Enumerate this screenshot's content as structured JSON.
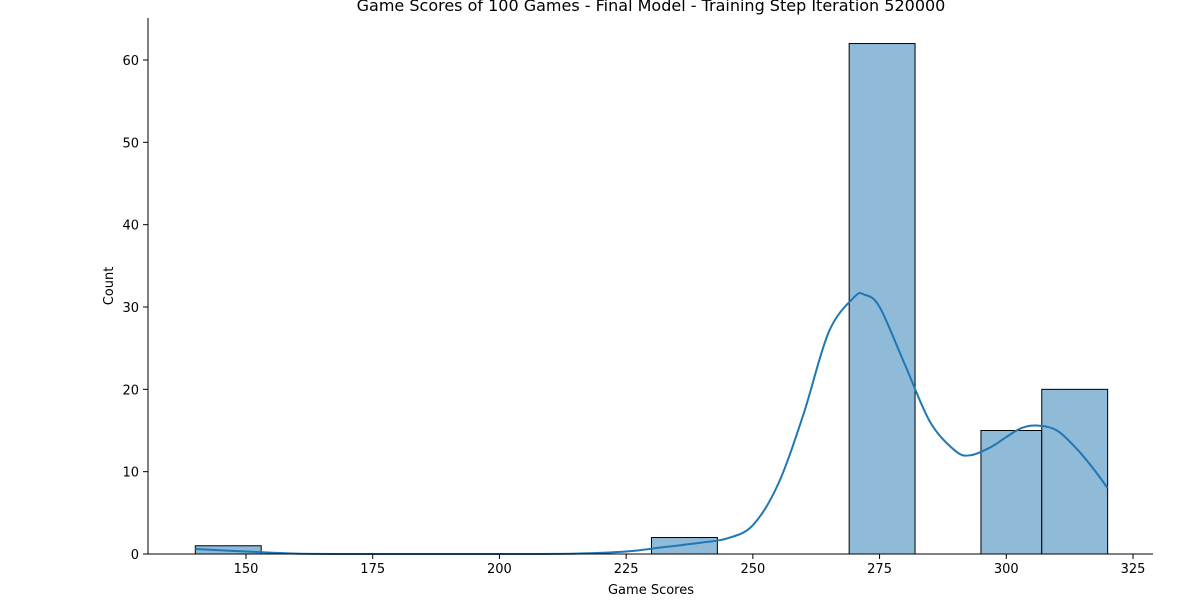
{
  "chart_data": {
    "type": "bar",
    "title": "Game Scores of 100 Games - Final Model - Training Step Iteration 520000",
    "xlabel": "Game Scores",
    "ylabel": "Count",
    "xlim": [
      128,
      328
    ],
    "ylim": [
      0,
      65
    ],
    "xticks": [
      150,
      175,
      200,
      225,
      250,
      275,
      300,
      325
    ],
    "yticks": [
      0,
      10,
      20,
      30,
      40,
      50,
      60
    ],
    "bins": [
      {
        "x0": 140,
        "x1": 153,
        "count": 1
      },
      {
        "x0": 230,
        "x1": 243,
        "count": 2
      },
      {
        "x0": 269,
        "x1": 282,
        "count": 62
      },
      {
        "x0": 295,
        "x1": 307,
        "count": 15
      },
      {
        "x0": 307,
        "x1": 320,
        "count": 20
      }
    ],
    "kde": {
      "x": [
        140,
        150,
        160,
        175,
        200,
        215,
        225,
        232,
        240,
        245,
        250,
        255,
        260,
        265,
        270,
        272,
        275,
        280,
        285,
        290,
        293,
        297,
        300,
        303,
        306,
        310,
        314,
        317,
        320
      ],
      "y": [
        0.6,
        0.3,
        0.05,
        0.0,
        0.0,
        0.05,
        0.3,
        0.8,
        1.4,
        1.9,
        3.5,
        8.5,
        17,
        27,
        31.2,
        31.5,
        30,
        23,
        16,
        12.5,
        12,
        13,
        14.2,
        15.3,
        15.6,
        15,
        12.7,
        10.5,
        8
      ]
    },
    "bar_color": "#8fbbd9",
    "line_color": "#1f77b4"
  }
}
